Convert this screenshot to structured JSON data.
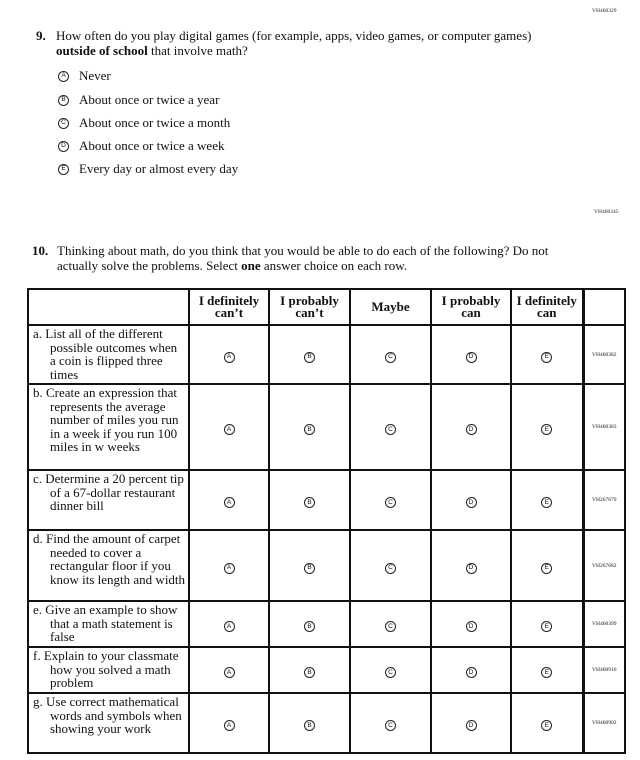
{
  "q9": {
    "code": "VH460329",
    "number": "9.",
    "text_before": "How often do you play digital games (for example, apps, video games, or computer games) ",
    "text_bold": "outside of school",
    "text_after": " that involve math?",
    "options": [
      {
        "letter": "A",
        "label": "Never"
      },
      {
        "letter": "B",
        "label": "About once or twice a year"
      },
      {
        "letter": "C",
        "label": "About once or twice a month"
      },
      {
        "letter": "D",
        "label": "About once or twice a week"
      },
      {
        "letter": "E",
        "label": "Every day or almost every day"
      }
    ]
  },
  "q10": {
    "code": "VH460345",
    "number": "10.",
    "text_before": "Thinking about math, do you think that you would be able to do each of the following? Do not actually solve the problems. Select ",
    "text_bold": "one",
    "text_after": " answer choice on each row.",
    "columns": [
      "I definitely can’t",
      "I probably can’t",
      "Maybe",
      "I probably can",
      "I definitely can"
    ],
    "letters": [
      "A",
      "B",
      "C",
      "D",
      "E"
    ],
    "rows": [
      {
        "label": "a. List all of the different possible outcomes when a coin is flipped three times",
        "code": "VH460382"
      },
      {
        "label": "b. Create an expression that represents the average number of miles you run in a week if you run 100 miles in w weeks",
        "code": "VH460383"
      },
      {
        "label": "c. Determine a 20 percent tip of a 67-dollar restaurant dinner bill",
        "code": "VH267679"
      },
      {
        "label": "d. Find the amount of carpet needed to cover a rectangular floor if you know its length and width",
        "code": "VH267682"
      },
      {
        "label": "e. Give an example to show that a math statement is false",
        "code": "VH460399"
      },
      {
        "label": "f. Explain to your classmate how you solved a math problem",
        "code": "VH460910"
      },
      {
        "label": "g. Use correct mathematical words and symbols when showing your work",
        "code": "VH460902"
      }
    ]
  }
}
